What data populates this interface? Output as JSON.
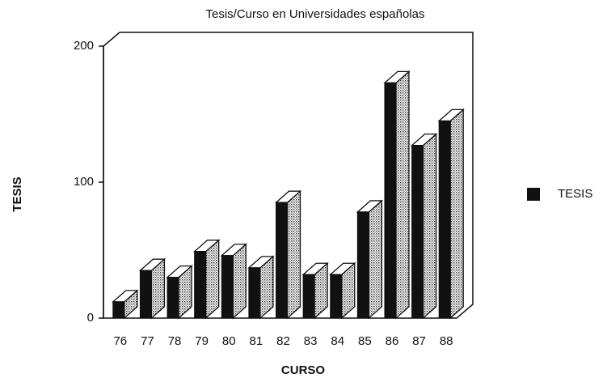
{
  "chart_data": {
    "type": "bar3d",
    "title": "Tesis/Curso en Universidades españolas",
    "x_label": "CURSO",
    "y_label": "TESIS",
    "categories": [
      "76",
      "77",
      "78",
      "79",
      "80",
      "81",
      "82",
      "83",
      "84",
      "85",
      "86",
      "87",
      "88"
    ],
    "series": [
      {
        "name": "TESIS",
        "color": "#111111",
        "values": [
          12,
          35,
          30,
          49,
          46,
          37,
          85,
          32,
          32,
          78,
          173,
          127,
          145
        ]
      }
    ],
    "ylim": [
      0,
      200
    ],
    "yticks": [
      0,
      100,
      200
    ],
    "legend": "right"
  }
}
